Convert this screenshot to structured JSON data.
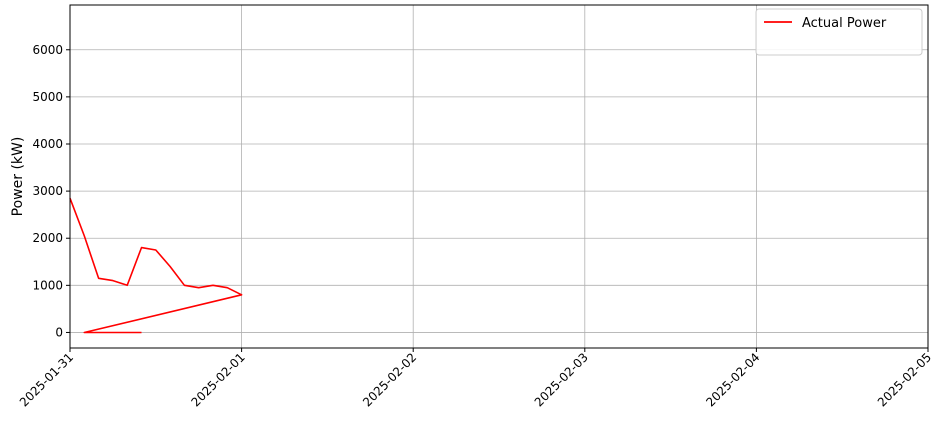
{
  "chart_data": {
    "type": "line",
    "title": "",
    "xlabel": "",
    "ylabel": "Power (kW)",
    "grid": true,
    "legend_position": "top-right",
    "x_ticks": [
      "2025-01-31",
      "2025-02-01",
      "2025-02-02",
      "2025-02-03",
      "2025-02-04",
      "2025-02-05"
    ],
    "xlim": [
      "2025-01-31",
      "2025-02-05"
    ],
    "y_ticks": [
      0,
      1000,
      2000,
      3000,
      4000,
      5000,
      6000
    ],
    "ylim": [
      -330,
      6950
    ],
    "series": [
      {
        "name": "Actual Power",
        "color": "#ff0000",
        "points": [
          [
            "2025-01-31 00:00",
            2850
          ],
          [
            "2025-01-31 02:00",
            2050
          ],
          [
            "2025-01-31 04:00",
            1150
          ],
          [
            "2025-01-31 06:00",
            1100
          ],
          [
            "2025-01-31 08:00",
            1000
          ],
          [
            "2025-01-31 10:00",
            1800
          ],
          [
            "2025-01-31 12:00",
            1750
          ],
          [
            "2025-01-31 14:00",
            1400
          ],
          [
            "2025-01-31 16:00",
            1000
          ],
          [
            "2025-01-31 18:00",
            950
          ],
          [
            "2025-01-31 20:00",
            1000
          ],
          [
            "2025-01-31 22:00",
            950
          ],
          [
            "2025-02-01 00:00",
            800
          ],
          [
            "2025-01-31 02:00 ",
            0
          ],
          [
            "2025-01-31 10:00 ",
            0
          ]
        ]
      }
    ]
  }
}
